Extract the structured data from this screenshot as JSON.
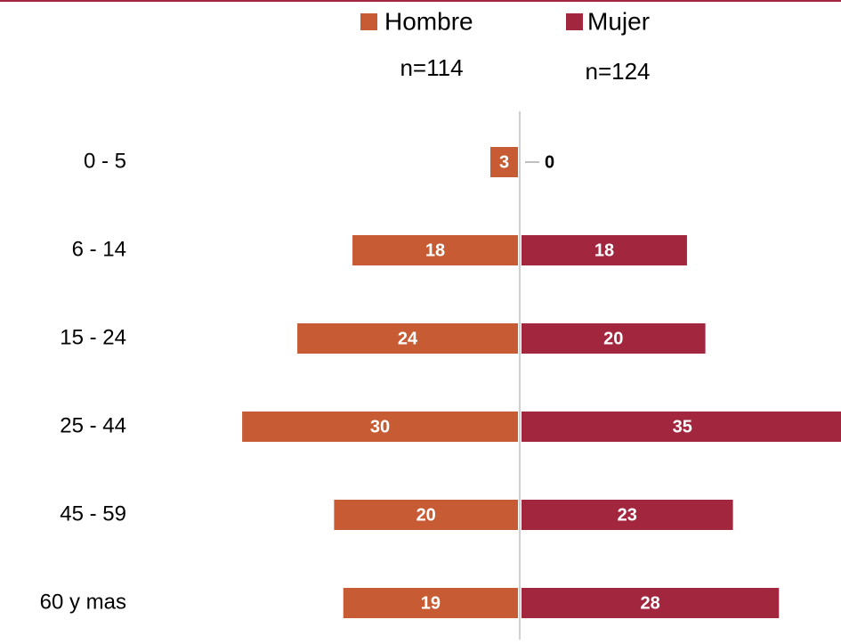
{
  "chart_data": {
    "type": "pyramid",
    "categories": [
      "0 - 5",
      "6 - 14",
      "15 - 24",
      "25 - 44",
      "45 - 59",
      "60 y mas"
    ],
    "series": [
      {
        "name": "Hombre",
        "color": "#c75b34",
        "values": [
          3,
          18,
          24,
          30,
          20,
          19
        ]
      },
      {
        "name": "Mujer",
        "color": "#a3263f",
        "values": [
          0,
          18,
          20,
          35,
          23,
          28
        ]
      }
    ],
    "annotations": [
      "n=114",
      "n=124"
    ]
  }
}
